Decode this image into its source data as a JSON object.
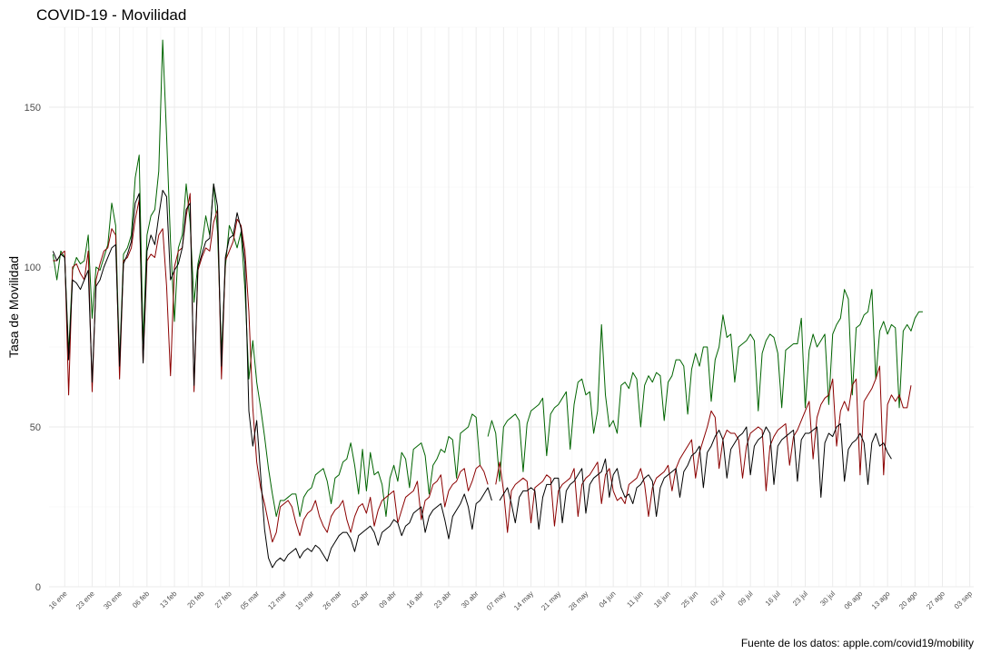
{
  "chart_data": {
    "type": "line",
    "title": "COVID-19 - Movilidad",
    "ylabel": "Tasa de Movilidad",
    "xlabel": "",
    "caption": "Fuente de los datos: apple.com/covid19/mobility",
    "x_start": "2020-01-13",
    "x_end": "2020-08-27",
    "xlim": [
      "2020-01-12",
      "2020-09-04"
    ],
    "ylim": [
      0,
      175
    ],
    "y_ticks": [
      0,
      50,
      100,
      150
    ],
    "x_ticks": [
      {
        "date": "2020-01-16",
        "label": "16 ene"
      },
      {
        "date": "2020-01-23",
        "label": "23 ene"
      },
      {
        "date": "2020-01-30",
        "label": "30 ene"
      },
      {
        "date": "2020-02-06",
        "label": "06 feb"
      },
      {
        "date": "2020-02-13",
        "label": "13 feb"
      },
      {
        "date": "2020-02-20",
        "label": "20 feb"
      },
      {
        "date": "2020-02-27",
        "label": "27 feb"
      },
      {
        "date": "2020-03-05",
        "label": "05 mar"
      },
      {
        "date": "2020-03-12",
        "label": "12 mar"
      },
      {
        "date": "2020-03-19",
        "label": "19 mar"
      },
      {
        "date": "2020-03-26",
        "label": "26 mar"
      },
      {
        "date": "2020-04-02",
        "label": "02 abr"
      },
      {
        "date": "2020-04-09",
        "label": "09 abr"
      },
      {
        "date": "2020-04-16",
        "label": "16 abr"
      },
      {
        "date": "2020-04-23",
        "label": "23 abr"
      },
      {
        "date": "2020-04-30",
        "label": "30 abr"
      },
      {
        "date": "2020-05-07",
        "label": "07 may"
      },
      {
        "date": "2020-05-14",
        "label": "14 may"
      },
      {
        "date": "2020-05-21",
        "label": "21 may"
      },
      {
        "date": "2020-05-28",
        "label": "28 may"
      },
      {
        "date": "2020-06-04",
        "label": "04 jun"
      },
      {
        "date": "2020-06-11",
        "label": "11 jun"
      },
      {
        "date": "2020-06-18",
        "label": "18 jun"
      },
      {
        "date": "2020-06-25",
        "label": "25 jun"
      },
      {
        "date": "2020-07-02",
        "label": "02 jul"
      },
      {
        "date": "2020-07-09",
        "label": "09 jul"
      },
      {
        "date": "2020-07-16",
        "label": "16 jul"
      },
      {
        "date": "2020-07-23",
        "label": "23 jul"
      },
      {
        "date": "2020-07-30",
        "label": "30 jul"
      },
      {
        "date": "2020-08-06",
        "label": "06 ago"
      },
      {
        "date": "2020-08-13",
        "label": "13 ago"
      },
      {
        "date": "2020-08-20",
        "label": "20 ago"
      },
      {
        "date": "2020-08-27",
        "label": "27 ago"
      },
      {
        "date": "2020-09-03",
        "label": "03 sep"
      }
    ],
    "gridlines": true,
    "legend": "none",
    "series": [
      {
        "color": "#006400",
        "values": [
          104,
          96,
          105,
          103,
          73,
          99,
          103,
          101,
          102,
          110,
          84,
          100,
          99,
          103,
          107,
          120,
          113,
          70,
          104,
          106,
          110,
          128,
          135,
          76,
          110,
          116,
          118,
          130,
          171,
          141,
          108,
          83,
          106,
          110,
          126,
          114,
          89,
          101,
          107,
          116,
          110,
          126,
          111,
          73,
          100,
          113,
          110,
          106,
          111,
          93,
          65,
          77,
          64,
          56,
          47,
          37,
          29,
          22,
          27,
          27,
          28,
          29,
          29,
          22,
          28,
          30,
          31,
          35,
          36,
          37,
          33,
          26,
          34,
          35,
          39,
          40,
          45,
          38,
          29,
          43,
          30,
          42,
          35,
          36,
          32,
          22,
          34,
          38,
          33,
          42,
          40,
          31,
          43,
          44,
          45,
          41,
          29,
          38,
          40,
          43,
          42,
          47,
          46,
          34,
          48,
          49,
          50,
          54,
          53,
          38,
          null,
          47,
          52,
          48,
          33,
          50,
          52,
          53,
          54,
          52,
          36,
          51,
          55,
          56,
          57,
          59,
          41,
          54,
          56,
          57,
          59,
          61,
          43,
          57,
          64,
          65,
          60,
          61,
          48,
          55,
          82,
          60,
          50,
          52,
          48,
          63,
          64,
          62,
          67,
          65,
          50,
          63,
          66,
          64,
          67,
          66,
          52,
          64,
          66,
          71,
          71,
          69,
          54,
          68,
          73,
          69,
          75,
          75,
          58,
          71,
          75,
          85,
          78,
          79,
          64,
          75,
          76,
          77,
          79,
          77,
          55,
          73,
          77,
          79,
          78,
          73,
          56,
          74,
          75,
          76,
          76,
          84,
          56,
          74,
          79,
          75,
          77,
          79,
          57,
          79,
          82,
          84,
          93,
          90,
          60,
          81,
          82,
          85,
          86,
          93,
          65,
          80,
          83,
          79,
          82,
          81,
          56,
          80,
          82,
          80,
          84,
          86,
          86
        ]
      },
      {
        "color": "#8b0000",
        "values": [
          102,
          102,
          104,
          105,
          60,
          100,
          101,
          98,
          96,
          105,
          61,
          96,
          101,
          105,
          106,
          112,
          110,
          65,
          102,
          103,
          106,
          115,
          121,
          70,
          102,
          104,
          103,
          110,
          112,
          94,
          66,
          100,
          105,
          106,
          116,
          123,
          61,
          99,
          103,
          106,
          105,
          114,
          118,
          65,
          102,
          105,
          108,
          115,
          113,
          105,
          86,
          56,
          39,
          31,
          26,
          20,
          14,
          17,
          25,
          26,
          27,
          25,
          20,
          16,
          21,
          23,
          24,
          27,
          22,
          19,
          17,
          22,
          24,
          25,
          27,
          21,
          17,
          22,
          25,
          26,
          23,
          28,
          19,
          24,
          27,
          28,
          29,
          30,
          20,
          24,
          28,
          29,
          30,
          33,
          21,
          27,
          28,
          32,
          33,
          35,
          25,
          30,
          32,
          33,
          36,
          37,
          30,
          33,
          37,
          38,
          36,
          32,
          null,
          32,
          39,
          30,
          17,
          30,
          32,
          33,
          34,
          33,
          20,
          31,
          32,
          33,
          35,
          34,
          19,
          30,
          32,
          33,
          34,
          37,
          22,
          32,
          34,
          35,
          37,
          39,
          26,
          35,
          37,
          30,
          27,
          28,
          26,
          32,
          33,
          34,
          37,
          32,
          22,
          31,
          34,
          35,
          36,
          38,
          30,
          37,
          40,
          42,
          44,
          46,
          34,
          42,
          46,
          50,
          55,
          53,
          37,
          46,
          49,
          48,
          48,
          46,
          34,
          44,
          48,
          49,
          50,
          49,
          30,
          44,
          47,
          49,
          50,
          51,
          38,
          47,
          49,
          52,
          55,
          58,
          40,
          53,
          57,
          59,
          60,
          65,
          44,
          55,
          58,
          55,
          63,
          65,
          35,
          58,
          60,
          62,
          65,
          69,
          35,
          57,
          60,
          58,
          60,
          56,
          56,
          63
        ]
      },
      {
        "color": "#000000",
        "values": [
          105,
          102,
          104,
          103,
          71,
          96,
          95,
          93,
          96,
          99,
          64,
          94,
          96,
          100,
          103,
          106,
          107,
          69,
          101,
          104,
          108,
          120,
          123,
          70,
          105,
          110,
          107,
          116,
          124,
          122,
          96,
          99,
          101,
          106,
          118,
          120,
          63,
          100,
          104,
          108,
          109,
          126,
          119,
          69,
          103,
          109,
          110,
          117,
          112,
          101,
          55,
          44,
          52,
          35,
          18,
          9,
          6,
          8,
          9,
          8,
          10,
          11,
          12,
          9,
          11,
          12,
          11,
          13,
          12,
          10,
          8,
          12,
          14,
          16,
          17,
          17,
          15,
          11,
          16,
          17,
          18,
          19,
          17,
          13,
          17,
          18,
          19,
          21,
          20,
          16,
          19,
          20,
          23,
          24,
          25,
          17,
          22,
          24,
          25,
          26,
          21,
          15,
          22,
          24,
          26,
          29,
          25,
          18,
          26,
          27,
          29,
          31,
          27,
          null,
          27,
          29,
          31,
          26,
          20,
          28,
          30,
          30,
          31,
          30,
          18,
          28,
          32,
          32,
          34,
          34,
          20,
          30,
          32,
          33,
          35,
          37,
          23,
          32,
          34,
          35,
          36,
          40,
          28,
          35,
          37,
          31,
          28,
          29,
          26,
          31,
          32,
          34,
          35,
          33,
          22,
          31,
          34,
          35,
          36,
          37,
          28,
          36,
          38,
          41,
          42,
          44,
          31,
          42,
          44,
          47,
          49,
          46,
          34,
          43,
          45,
          47,
          48,
          50,
          35,
          44,
          46,
          47,
          50,
          48,
          32,
          44,
          46,
          47,
          48,
          49,
          33,
          46,
          48,
          48,
          49,
          50,
          28,
          45,
          48,
          47,
          50,
          51,
          33,
          43,
          45,
          46,
          48,
          45,
          32,
          45,
          48,
          44,
          45,
          42,
          40
        ]
      }
    ]
  }
}
